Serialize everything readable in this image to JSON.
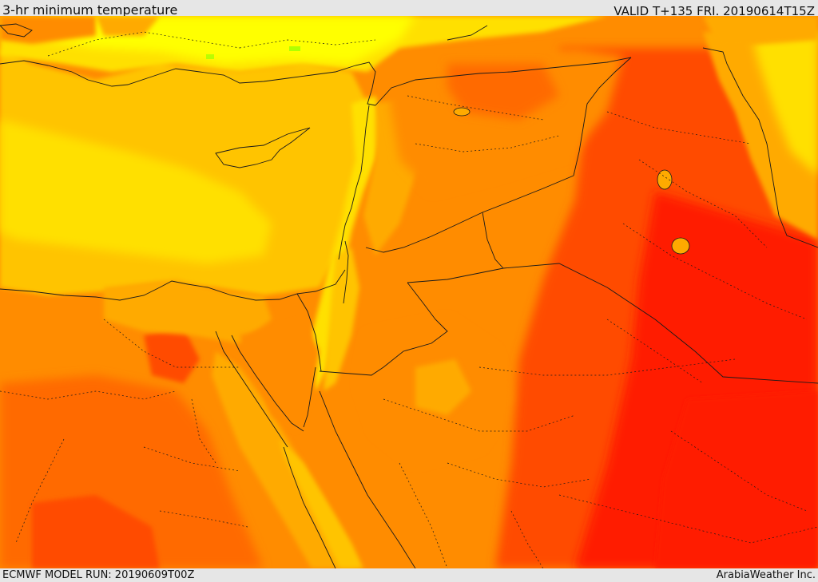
{
  "header": {
    "title": "3-hr minimum temperature",
    "valid_time": "VALID T+135 FRI. 20190614T15Z"
  },
  "footer": {
    "model_run": "ECMWF MODEL RUN: 20190609T00Z",
    "credit": "ArabiaWeather Inc."
  },
  "colors": {
    "lightest_yellow": "#ffff00",
    "yellow": "#ffe000",
    "golden": "#ffc400",
    "light_orange": "#ffaa00",
    "orange": "#ff8c00",
    "dark_orange": "#ff6a00",
    "red_orange": "#ff4c00",
    "red": "#ff1e00",
    "green_pixel": "#9cff00",
    "border": "#1a1a1a"
  }
}
